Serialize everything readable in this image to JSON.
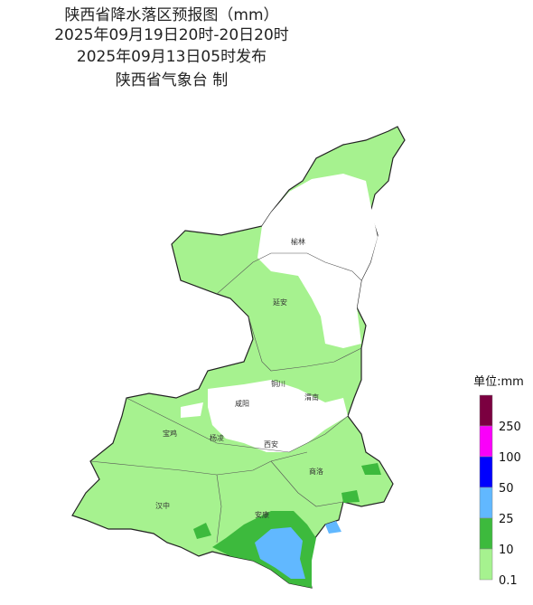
{
  "header": {
    "lines": [
      "陕西省降水落区预报图（mm）",
      "2025年09月19日20时-20日20时",
      "2025年09月13日05时发布",
      "陕西省气象台 制"
    ]
  },
  "cities": [
    {
      "label": "榆林"
    },
    {
      "label": "延安"
    },
    {
      "label": "铜川"
    },
    {
      "label": "渭南"
    },
    {
      "label": "咸阳"
    },
    {
      "label": "宝鸡"
    },
    {
      "label": "杨凌"
    },
    {
      "label": "西安"
    },
    {
      "label": "商洛"
    },
    {
      "label": "汉中"
    },
    {
      "label": "安康"
    }
  ],
  "legend": {
    "title": "单位:mm",
    "items": [
      {
        "label": null,
        "color": "#7b0040"
      },
      {
        "label": "250",
        "color": "#fa00fa"
      },
      {
        "label": "100",
        "color": "#0000fe"
      },
      {
        "label": "50",
        "color": "#61b8ff"
      },
      {
        "label": "25",
        "color": "#3dba3d"
      },
      {
        "label": "10",
        "color": "#a6f28f"
      },
      {
        "label": "0.1",
        "color": null
      }
    ]
  }
}
